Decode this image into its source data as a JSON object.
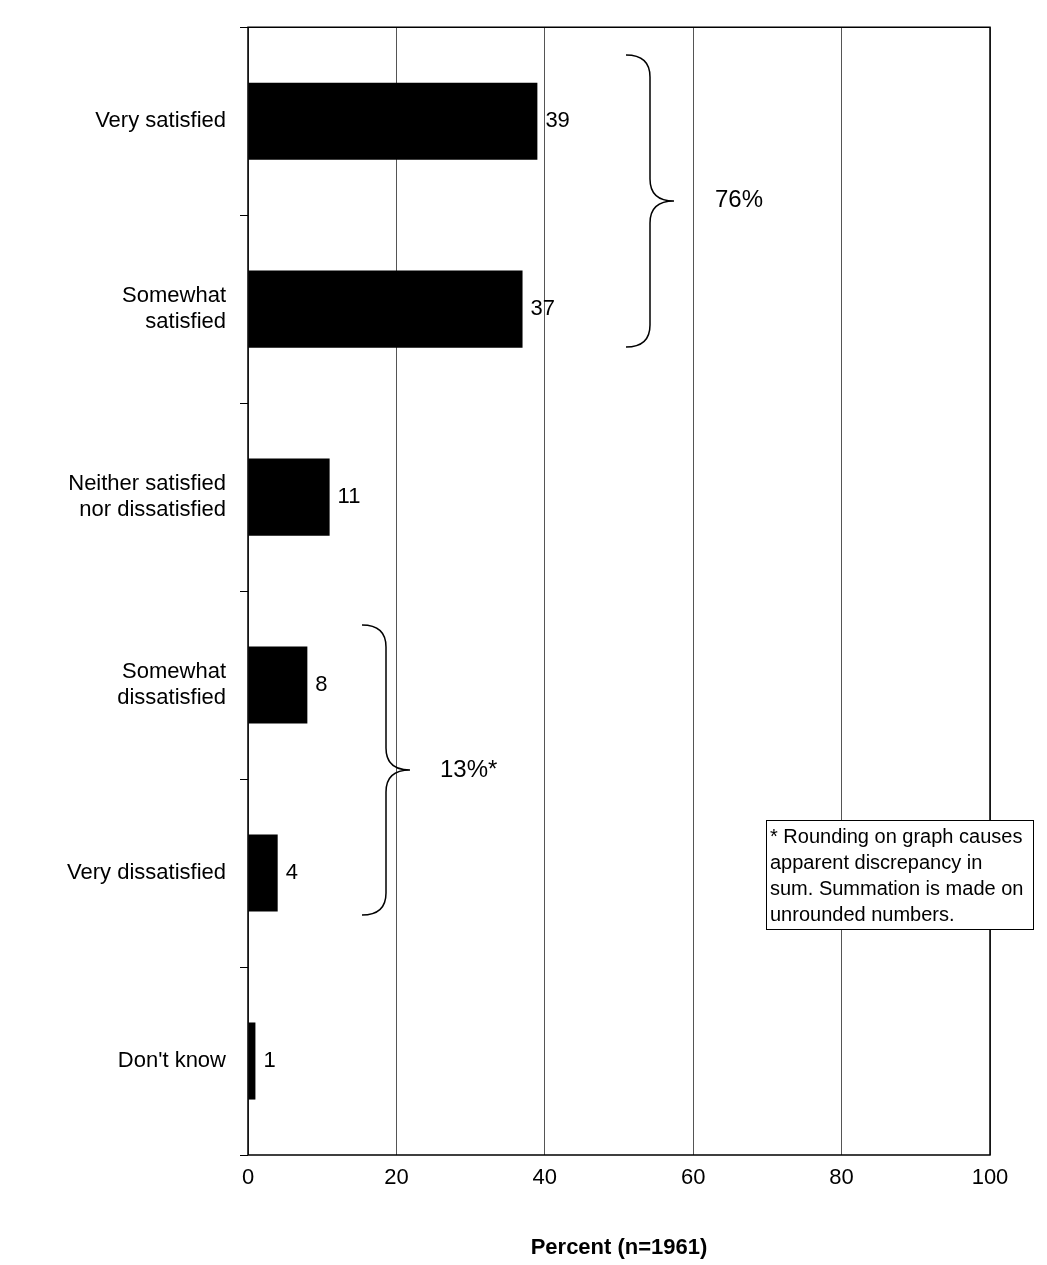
{
  "chart_data": {
    "type": "bar",
    "orientation": "horizontal",
    "categories": [
      "Very satisfied",
      "Somewhat satisfied",
      "Neither satisfied nor dissatisfied",
      "Somewhat dissatisfied",
      "Very dissatisfied",
      "Don't know"
    ],
    "values": [
      39,
      37,
      11,
      8,
      4,
      1
    ],
    "color": "#000000",
    "xlim": [
      0,
      100
    ],
    "xticks": [
      0,
      20,
      40,
      60,
      80,
      100
    ],
    "xlabel": "Percent (n=1961)",
    "grid": "x",
    "data_labels": true,
    "annotations": [
      "76%",
      "13%*",
      "* Rounding on graph causes apparent discrepancy in sum. Summation is made on unrounded numbers."
    ]
  }
}
